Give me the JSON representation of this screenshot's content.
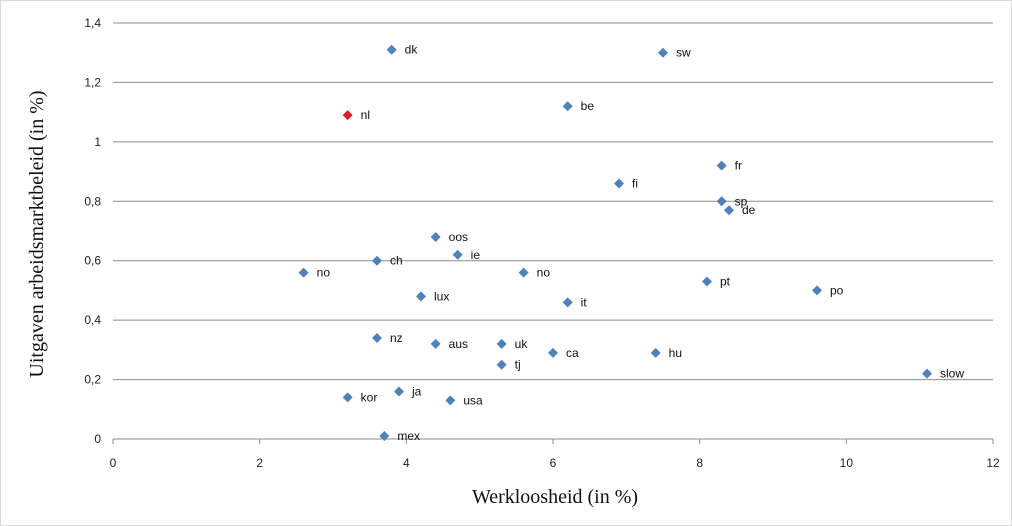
{
  "chart_data": {
    "type": "scatter",
    "title": "",
    "xlabel": "Werkloosheid (in %)",
    "ylabel": "Uitgaven arbeidsmarktbeleid (in %)",
    "xlim": [
      0,
      12
    ],
    "ylim": [
      0,
      1.4
    ],
    "x_ticks": [
      0,
      2,
      4,
      6,
      8,
      10,
      12
    ],
    "x_tick_labels": [
      "0",
      "2",
      "4",
      "6",
      "8",
      "10",
      "12"
    ],
    "y_ticks": [
      0,
      0.2,
      0.4,
      0.6,
      0.8,
      1,
      1.2,
      1.4
    ],
    "y_tick_labels": [
      "0",
      "0,2",
      "0,4",
      "0,6",
      "0,8",
      "1",
      "1,2",
      "1,4"
    ],
    "grid": "horizontal",
    "legend": "none",
    "marker": "diamond",
    "colors": {
      "default": "#4f81bd",
      "highlight": "#e31a1c",
      "grid": "#8c8c8c"
    },
    "points": [
      {
        "label": "dk",
        "x": 3.8,
        "y": 1.31
      },
      {
        "label": "sw",
        "x": 7.5,
        "y": 1.3
      },
      {
        "label": "be",
        "x": 6.2,
        "y": 1.12
      },
      {
        "label": "nl",
        "x": 3.2,
        "y": 1.09,
        "highlight": true
      },
      {
        "label": "fr",
        "x": 8.3,
        "y": 0.92
      },
      {
        "label": "fi",
        "x": 6.9,
        "y": 0.86
      },
      {
        "label": "sp",
        "x": 8.3,
        "y": 0.8
      },
      {
        "label": "de",
        "x": 8.4,
        "y": 0.77
      },
      {
        "label": "oos",
        "x": 4.4,
        "y": 0.68
      },
      {
        "label": "ie",
        "x": 4.7,
        "y": 0.62
      },
      {
        "label": "ch",
        "x": 3.6,
        "y": 0.6
      },
      {
        "label": "no",
        "x": 2.6,
        "y": 0.56
      },
      {
        "label": "no",
        "x": 5.6,
        "y": 0.56
      },
      {
        "label": "pt",
        "x": 8.1,
        "y": 0.53
      },
      {
        "label": "po",
        "x": 9.6,
        "y": 0.5
      },
      {
        "label": "lux",
        "x": 4.2,
        "y": 0.48
      },
      {
        "label": "it",
        "x": 6.2,
        "y": 0.46
      },
      {
        "label": "nz",
        "x": 3.6,
        "y": 0.34
      },
      {
        "label": "aus",
        "x": 4.4,
        "y": 0.32
      },
      {
        "label": "uk",
        "x": 5.3,
        "y": 0.32
      },
      {
        "label": "ca",
        "x": 6.0,
        "y": 0.29
      },
      {
        "label": "hu",
        "x": 7.4,
        "y": 0.29
      },
      {
        "label": "tj",
        "x": 5.3,
        "y": 0.25
      },
      {
        "label": "slow",
        "x": 11.1,
        "y": 0.22
      },
      {
        "label": "ja",
        "x": 3.9,
        "y": 0.16
      },
      {
        "label": "kor",
        "x": 3.2,
        "y": 0.14
      },
      {
        "label": "usa",
        "x": 4.6,
        "y": 0.13
      },
      {
        "label": "mex",
        "x": 3.7,
        "y": 0.01
      }
    ]
  }
}
